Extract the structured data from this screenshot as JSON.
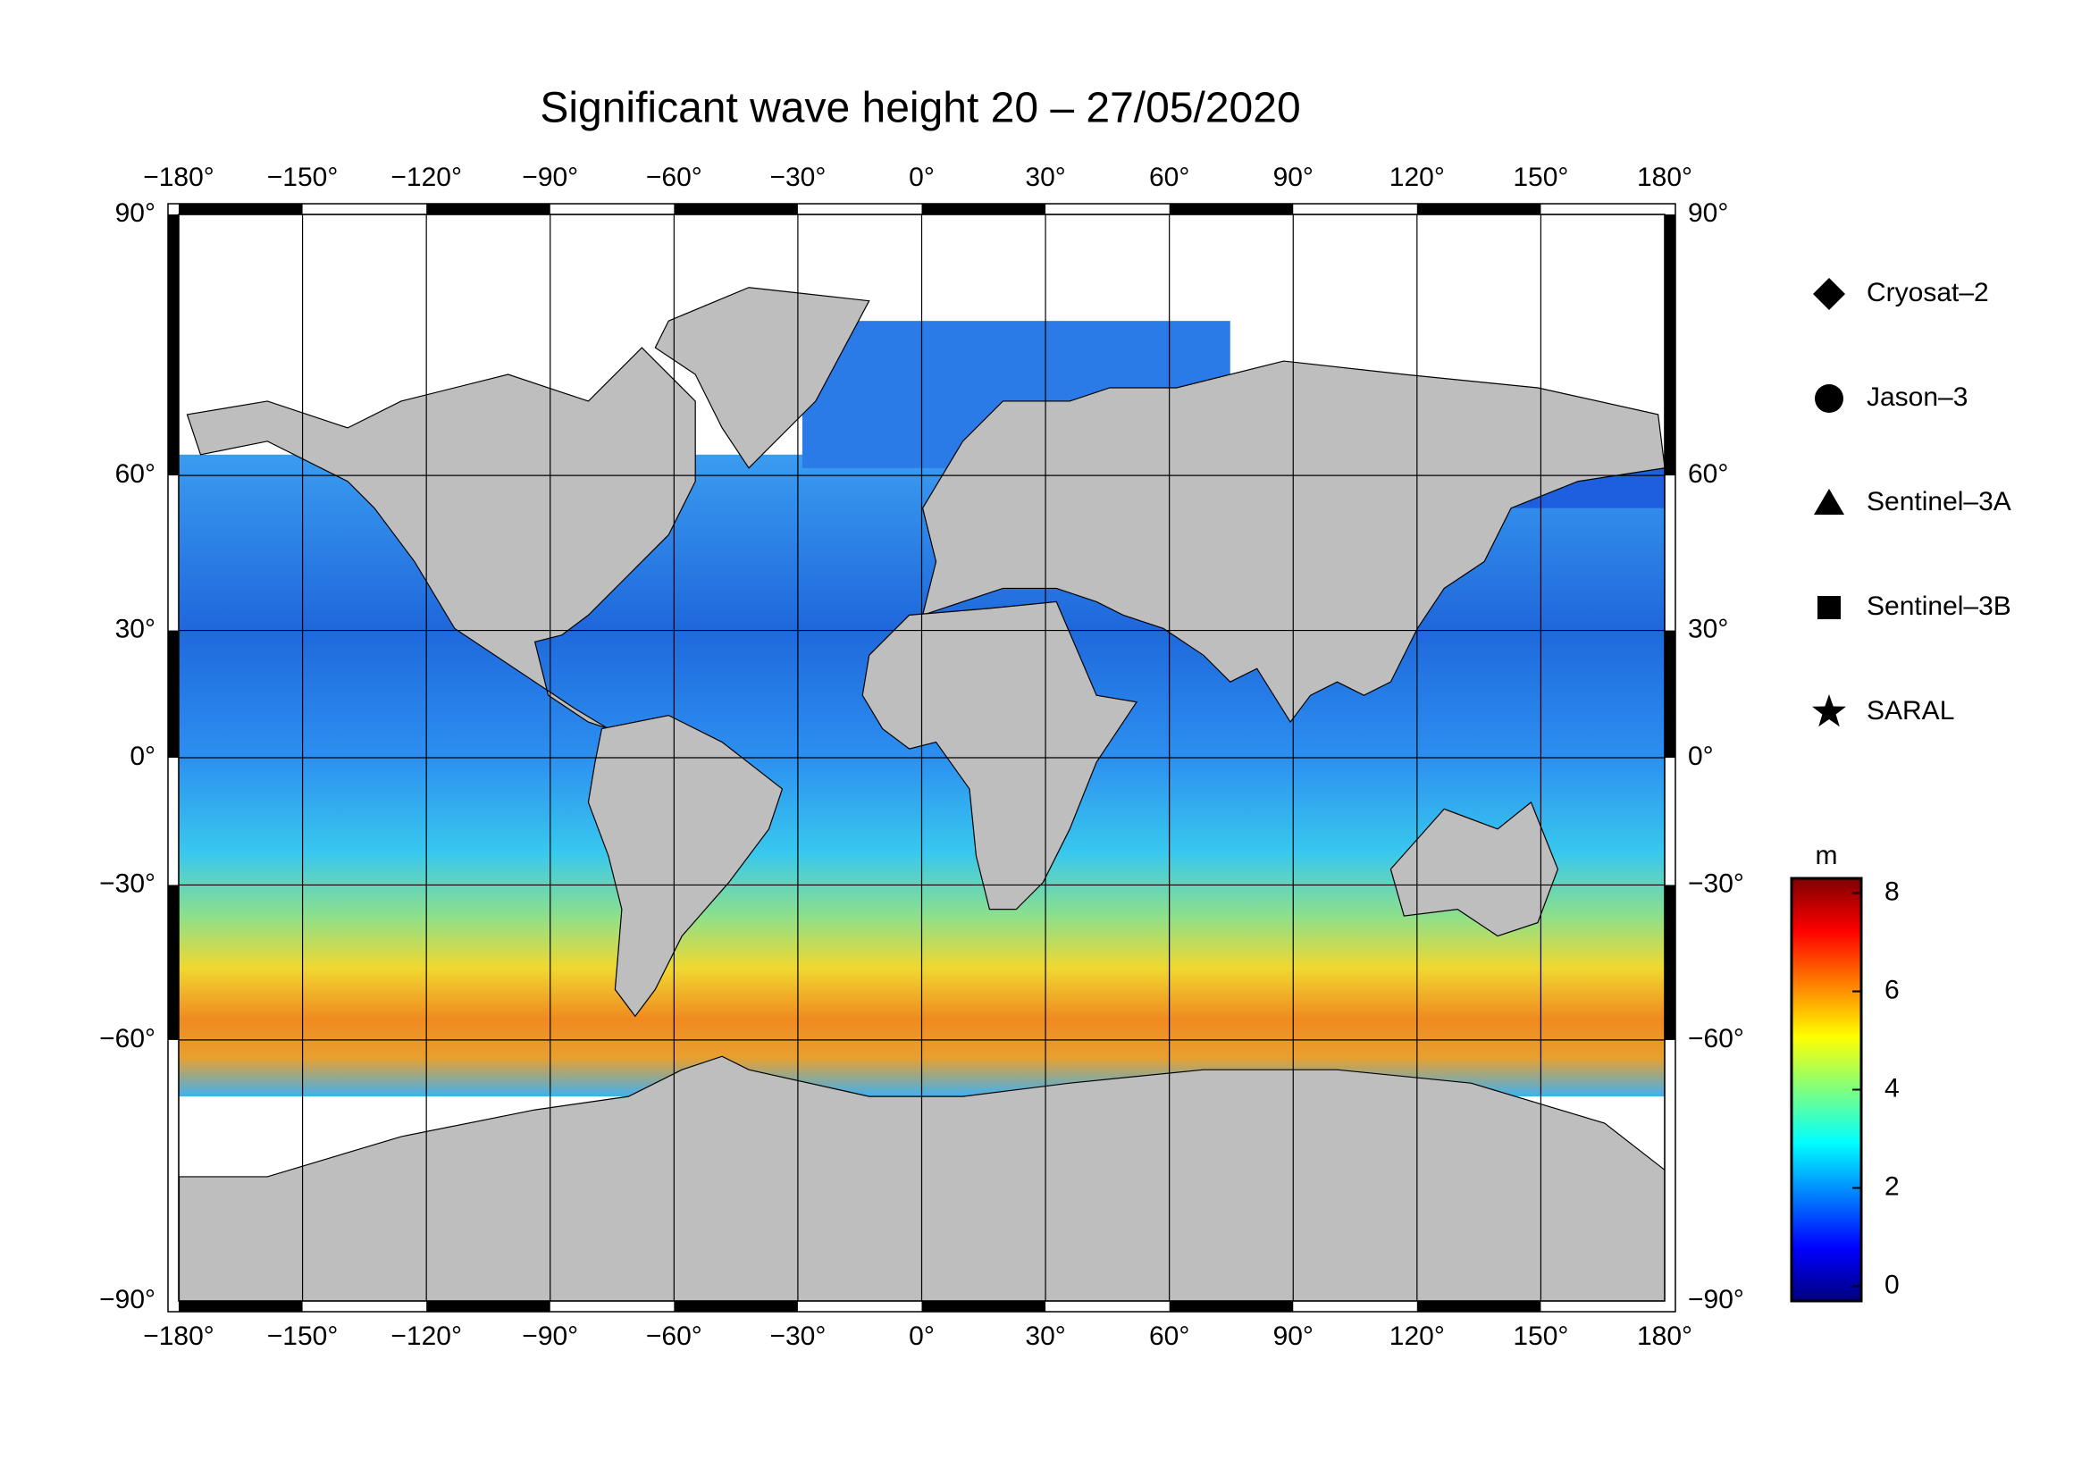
{
  "map": {
    "title": "Significant wave height 20 – 27/05/2020",
    "projection": "miller",
    "xlim": [
      -180,
      180
    ],
    "ylim": [
      -90,
      90
    ],
    "xticks": [
      {
        "value": -180,
        "label": "−180°"
      },
      {
        "value": -150,
        "label": "−150°"
      },
      {
        "value": -120,
        "label": "−120°"
      },
      {
        "value": -90,
        "label": "−90°"
      },
      {
        "value": -60,
        "label": "−60°"
      },
      {
        "value": -30,
        "label": "−30°"
      },
      {
        "value": 0,
        "label": "0°"
      },
      {
        "value": 30,
        "label": "30°"
      },
      {
        "value": 60,
        "label": "60°"
      },
      {
        "value": 90,
        "label": "90°"
      },
      {
        "value": 120,
        "label": "120°"
      },
      {
        "value": 150,
        "label": "150°"
      },
      {
        "value": 180,
        "label": "180°"
      }
    ],
    "yticks": [
      {
        "value": 90,
        "label": "90°"
      },
      {
        "value": 60,
        "label": "60°"
      },
      {
        "value": 30,
        "label": "30°"
      },
      {
        "value": 0,
        "label": "0°"
      },
      {
        "value": -30,
        "label": "−30°"
      },
      {
        "value": -60,
        "label": "−60°"
      },
      {
        "value": -90,
        "label": "−90°"
      }
    ],
    "grid": true,
    "legend": [
      {
        "name": "Cryosat–2",
        "marker": "diamond"
      },
      {
        "name": "Jason–3",
        "marker": "circle"
      },
      {
        "name": "Sentinel–3A",
        "marker": "triangle"
      },
      {
        "name": "Sentinel–3B",
        "marker": "square"
      },
      {
        "name": "SARAL",
        "marker": "star"
      }
    ],
    "colorbar": {
      "unit": "m",
      "clim": [
        -0.3,
        8.3
      ],
      "ticks": [
        0,
        2,
        4,
        6,
        8
      ],
      "colormap": "jet"
    }
  }
}
